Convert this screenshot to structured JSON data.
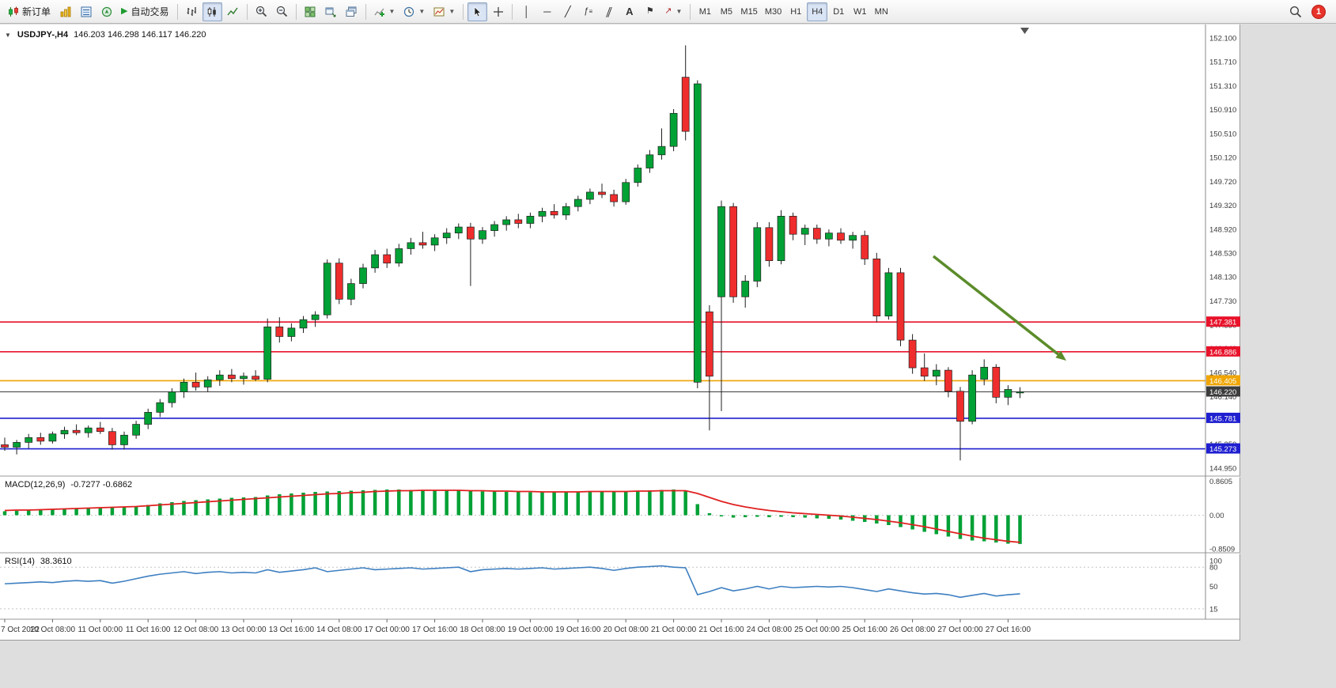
{
  "toolbar": {
    "new_order_label": "新订单",
    "auto_trading_label": "自动交易",
    "timeframe_labels": [
      "M1",
      "M5",
      "M15",
      "M30",
      "H1",
      "H4",
      "D1",
      "W1",
      "MN"
    ],
    "active_timeframe": "H4",
    "notification_count": "1"
  },
  "chart": {
    "symbol_title": "USDJPY-,H4",
    "ohlc_display": "146.203 146.298 146.117 146.220",
    "colors": {
      "bull": "#00a135",
      "bear": "#ef2d2d",
      "wick": "#1f1f1f",
      "macd_hist": "#00a135",
      "macd_signal": "#e02020",
      "rsi_line": "#3d7fc1",
      "background": "#ffffff"
    },
    "hlines": [
      {
        "price": 147.381,
        "label": "147.381",
        "color": "#e8122a",
        "current": false
      },
      {
        "price": 146.886,
        "label": "146.886",
        "color": "#e8122a",
        "current": false
      },
      {
        "price": 146.405,
        "label": "146.405",
        "color": "#f0a500",
        "current": false
      },
      {
        "price": 146.22,
        "label": "146.220",
        "color": "#3c3c3c",
        "current": true
      },
      {
        "price": 145.781,
        "label": "145.781",
        "color": "#1f1fd0",
        "current": false
      },
      {
        "price": 145.273,
        "label": "145.273",
        "color": "#1f1fd0",
        "current": false
      }
    ],
    "price_axis": [
      152.1,
      151.71,
      151.31,
      150.91,
      150.51,
      150.12,
      149.72,
      149.32,
      148.92,
      148.53,
      148.13,
      147.73,
      147.33,
      146.94,
      146.54,
      146.14,
      145.75,
      145.35,
      144.95
    ],
    "time_axis": [
      {
        "i": 0,
        "label": "7 Oct 2022"
      },
      {
        "i": 4,
        "label": "10 Oct 08:00"
      },
      {
        "i": 8,
        "label": "11 Oct 00:00"
      },
      {
        "i": 12,
        "label": "11 Oct 16:00"
      },
      {
        "i": 16,
        "label": "12 Oct 08:00"
      },
      {
        "i": 20,
        "label": "13 Oct 00:00"
      },
      {
        "i": 24,
        "label": "13 Oct 16:00"
      },
      {
        "i": 28,
        "label": "14 Oct 08:00"
      },
      {
        "i": 32,
        "label": "17 Oct 00:00"
      },
      {
        "i": 36,
        "label": "17 Oct 16:00"
      },
      {
        "i": 40,
        "label": "18 Oct 08:00"
      },
      {
        "i": 44,
        "label": "19 Oct 00:00"
      },
      {
        "i": 48,
        "label": "19 Oct 16:00"
      },
      {
        "i": 52,
        "label": "20 Oct 08:00"
      },
      {
        "i": 56,
        "label": "21 Oct 00:00"
      },
      {
        "i": 60,
        "label": "21 Oct 16:00"
      },
      {
        "i": 64,
        "label": "24 Oct 08:00"
      },
      {
        "i": 68,
        "label": "25 Oct 00:00"
      },
      {
        "i": 72,
        "label": "25 Oct 16:00"
      },
      {
        "i": 76,
        "label": "26 Oct 08:00"
      },
      {
        "i": 80,
        "label": "27 Oct 00:00"
      },
      {
        "i": 84,
        "label": "27 Oct 16:00"
      }
    ]
  },
  "chart_data": {
    "type": "candlestick",
    "symbol": "USDJPY-",
    "timeframe": "H4",
    "current_ohlc": {
      "open": 146.203,
      "high": 146.298,
      "low": 146.117,
      "close": 146.22
    },
    "candles": [
      [
        145.34,
        145.46,
        145.24,
        145.3
      ],
      [
        145.3,
        145.42,
        145.18,
        145.38
      ],
      [
        145.38,
        145.52,
        145.28,
        145.46
      ],
      [
        145.46,
        145.54,
        145.34,
        145.4
      ],
      [
        145.4,
        145.56,
        145.36,
        145.52
      ],
      [
        145.52,
        145.64,
        145.44,
        145.58
      ],
      [
        145.58,
        145.68,
        145.5,
        145.54
      ],
      [
        145.54,
        145.66,
        145.46,
        145.62
      ],
      [
        145.62,
        145.72,
        145.52,
        145.56
      ],
      [
        145.56,
        145.62,
        145.26,
        145.34
      ],
      [
        145.34,
        145.56,
        145.26,
        145.5
      ],
      [
        145.5,
        145.74,
        145.44,
        145.68
      ],
      [
        145.68,
        145.94,
        145.6,
        145.88
      ],
      [
        145.88,
        146.1,
        145.8,
        146.04
      ],
      [
        146.04,
        146.28,
        145.96,
        146.22
      ],
      [
        146.22,
        146.44,
        146.12,
        146.38
      ],
      [
        146.38,
        146.54,
        146.24,
        146.3
      ],
      [
        146.3,
        146.48,
        146.22,
        146.42
      ],
      [
        146.42,
        146.58,
        146.32,
        146.5
      ],
      [
        146.5,
        146.6,
        146.38,
        146.44
      ],
      [
        146.44,
        146.54,
        146.34,
        146.48
      ],
      [
        146.48,
        146.58,
        146.4,
        146.43
      ],
      [
        146.43,
        147.44,
        146.38,
        147.3
      ],
      [
        147.3,
        147.46,
        147.04,
        147.14
      ],
      [
        147.14,
        147.36,
        147.06,
        147.28
      ],
      [
        147.28,
        147.48,
        147.2,
        147.42
      ],
      [
        147.42,
        147.56,
        147.3,
        147.5
      ],
      [
        147.5,
        148.42,
        147.44,
        148.36
      ],
      [
        148.36,
        148.44,
        147.68,
        147.76
      ],
      [
        147.76,
        148.1,
        147.66,
        148.02
      ],
      [
        148.02,
        148.35,
        147.94,
        148.28
      ],
      [
        148.28,
        148.58,
        148.2,
        148.5
      ],
      [
        148.5,
        148.6,
        148.28,
        148.36
      ],
      [
        148.36,
        148.68,
        148.3,
        148.6
      ],
      [
        148.6,
        148.78,
        148.5,
        148.7
      ],
      [
        148.7,
        148.88,
        148.6,
        148.66
      ],
      [
        148.66,
        148.84,
        148.56,
        148.78
      ],
      [
        148.78,
        148.94,
        148.68,
        148.86
      ],
      [
        148.86,
        149.02,
        148.76,
        148.96
      ],
      [
        148.96,
        149.03,
        147.98,
        148.76
      ],
      [
        148.76,
        148.96,
        148.68,
        148.9
      ],
      [
        148.9,
        149.06,
        148.8,
        149.0
      ],
      [
        149.0,
        149.14,
        148.9,
        149.08
      ],
      [
        149.08,
        149.18,
        148.94,
        149.02
      ],
      [
        149.02,
        149.2,
        148.94,
        149.14
      ],
      [
        149.14,
        149.28,
        149.04,
        149.22
      ],
      [
        149.22,
        149.34,
        149.1,
        149.16
      ],
      [
        149.16,
        149.36,
        149.08,
        149.3
      ],
      [
        149.3,
        149.48,
        149.22,
        149.42
      ],
      [
        149.42,
        149.6,
        149.34,
        149.54
      ],
      [
        149.54,
        149.68,
        149.44,
        149.5
      ],
      [
        149.5,
        149.58,
        149.3,
        149.38
      ],
      [
        149.38,
        149.76,
        149.33,
        149.7
      ],
      [
        149.7,
        150.0,
        149.63,
        149.94
      ],
      [
        149.94,
        150.24,
        149.86,
        150.16
      ],
      [
        150.16,
        150.6,
        150.08,
        150.3
      ],
      [
        150.3,
        150.92,
        150.22,
        150.85
      ],
      [
        151.45,
        151.98,
        150.4,
        150.55
      ],
      [
        146.38,
        151.4,
        146.28,
        151.34
      ],
      [
        147.55,
        147.66,
        145.58,
        146.48
      ],
      [
        147.8,
        149.4,
        145.9,
        149.3
      ],
      [
        149.3,
        149.36,
        147.7,
        147.8
      ],
      [
        147.8,
        148.16,
        147.62,
        148.06
      ],
      [
        148.06,
        149.04,
        147.96,
        148.95
      ],
      [
        148.95,
        149.04,
        148.3,
        148.4
      ],
      [
        148.4,
        149.24,
        148.34,
        149.14
      ],
      [
        149.14,
        149.2,
        148.74,
        148.84
      ],
      [
        148.84,
        149.0,
        148.66,
        148.94
      ],
      [
        148.94,
        149.0,
        148.68,
        148.76
      ],
      [
        148.76,
        148.92,
        148.64,
        148.86
      ],
      [
        148.86,
        148.94,
        148.68,
        148.74
      ],
      [
        148.74,
        148.88,
        148.6,
        148.82
      ],
      [
        148.82,
        148.9,
        148.33,
        148.43
      ],
      [
        148.43,
        148.53,
        147.38,
        147.48
      ],
      [
        147.48,
        148.28,
        147.42,
        148.2
      ],
      [
        148.2,
        148.28,
        146.98,
        147.08
      ],
      [
        147.08,
        147.18,
        146.52,
        146.62
      ],
      [
        146.62,
        146.86,
        146.4,
        146.48
      ],
      [
        146.48,
        146.68,
        146.33,
        146.58
      ],
      [
        146.58,
        146.63,
        146.13,
        146.23
      ],
      [
        146.23,
        146.3,
        145.08,
        145.73
      ],
      [
        145.73,
        146.58,
        145.68,
        146.5
      ],
      [
        146.43,
        146.76,
        146.33,
        146.63
      ],
      [
        146.63,
        146.68,
        146.03,
        146.13
      ],
      [
        146.13,
        146.33,
        146.0,
        146.26
      ],
      [
        146.203,
        146.298,
        146.117,
        146.22
      ]
    ],
    "macd": {
      "title": "MACD(12,26,9)",
      "values_display": "-0.7277 -0.6862",
      "scale_labels": [
        "0.8605",
        "0.00",
        "-0.8509"
      ],
      "histogram": [
        0.1,
        0.11,
        0.12,
        0.14,
        0.15,
        0.17,
        0.18,
        0.19,
        0.2,
        0.2,
        0.21,
        0.23,
        0.26,
        0.3,
        0.33,
        0.36,
        0.38,
        0.4,
        0.42,
        0.44,
        0.45,
        0.46,
        0.5,
        0.53,
        0.55,
        0.57,
        0.59,
        0.6,
        0.61,
        0.62,
        0.63,
        0.64,
        0.65,
        0.65,
        0.64,
        0.64,
        0.63,
        0.63,
        0.62,
        0.61,
        0.6,
        0.6,
        0.59,
        0.59,
        0.58,
        0.58,
        0.58,
        0.59,
        0.6,
        0.61,
        0.61,
        0.6,
        0.61,
        0.62,
        0.63,
        0.64,
        0.65,
        0.62,
        0.28,
        0.05,
        -0.03,
        -0.06,
        -0.05,
        -0.04,
        -0.05,
        -0.04,
        -0.05,
        -0.06,
        -0.08,
        -0.09,
        -0.11,
        -0.14,
        -0.17,
        -0.21,
        -0.25,
        -0.3,
        -0.36,
        -0.42,
        -0.48,
        -0.54,
        -0.6,
        -0.64,
        -0.66,
        -0.69,
        -0.72,
        -0.7277
      ],
      "signal": [
        0.12,
        0.13,
        0.13,
        0.14,
        0.15,
        0.16,
        0.17,
        0.18,
        0.19,
        0.2,
        0.21,
        0.22,
        0.24,
        0.26,
        0.28,
        0.3,
        0.32,
        0.34,
        0.36,
        0.38,
        0.4,
        0.42,
        0.44,
        0.46,
        0.48,
        0.5,
        0.52,
        0.54,
        0.55,
        0.57,
        0.58,
        0.6,
        0.61,
        0.62,
        0.62,
        0.63,
        0.63,
        0.63,
        0.63,
        0.62,
        0.62,
        0.61,
        0.61,
        0.6,
        0.6,
        0.59,
        0.59,
        0.59,
        0.59,
        0.6,
        0.6,
        0.6,
        0.6,
        0.61,
        0.61,
        0.62,
        0.62,
        0.62,
        0.55,
        0.45,
        0.35,
        0.27,
        0.21,
        0.16,
        0.12,
        0.09,
        0.06,
        0.04,
        0.02,
        0.0,
        -0.02,
        -0.05,
        -0.08,
        -0.11,
        -0.15,
        -0.19,
        -0.24,
        -0.29,
        -0.35,
        -0.41,
        -0.47,
        -0.53,
        -0.58,
        -0.62,
        -0.66,
        -0.6862
      ]
    },
    "rsi": {
      "title": "RSI(14)",
      "value_display": "38.3610",
      "scale_labels": [
        "100",
        "80",
        "50",
        "15"
      ],
      "levels": [
        80,
        15
      ],
      "values": [
        54,
        55,
        56,
        57,
        56,
        58,
        59,
        58,
        59,
        55,
        58,
        62,
        66,
        69,
        71,
        73,
        70,
        72,
        73,
        71,
        72,
        71,
        76,
        72,
        74,
        76,
        79,
        73,
        75,
        77,
        79,
        76,
        77,
        78,
        79,
        77,
        78,
        79,
        80,
        73,
        76,
        77,
        78,
        77,
        78,
        79,
        77,
        78,
        79,
        80,
        78,
        75,
        78,
        80,
        81,
        82,
        80,
        79,
        37,
        42,
        48,
        43,
        46,
        50,
        46,
        50,
        48,
        49,
        50,
        49,
        50,
        48,
        45,
        42,
        46,
        43,
        40,
        38,
        39,
        37,
        33,
        36,
        39,
        35,
        37,
        38.36
      ]
    },
    "annotation_arrow": {
      "from": [
        1180,
        293
      ],
      "to": [
        1348,
        425
      ],
      "color": "#5b8c2a"
    }
  }
}
